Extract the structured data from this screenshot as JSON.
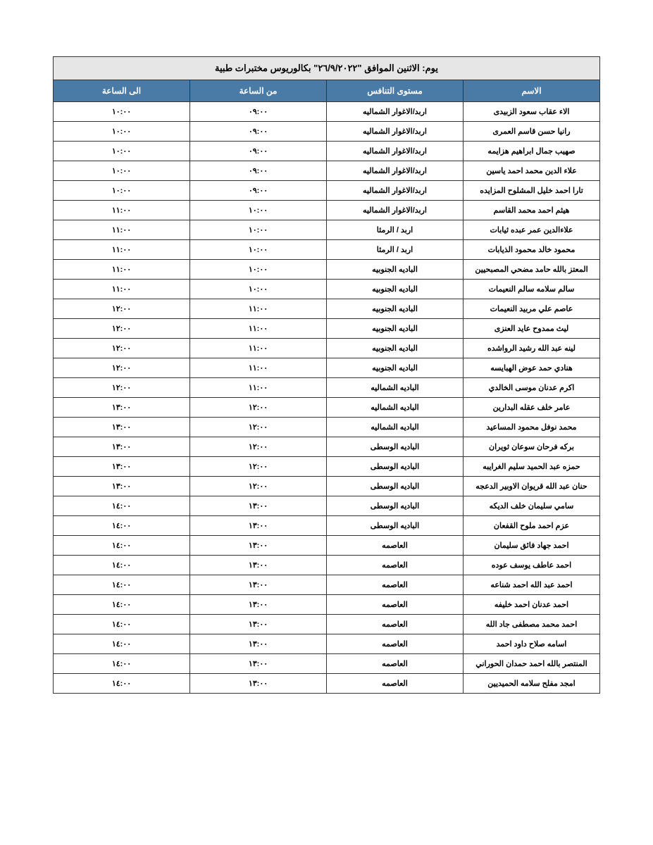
{
  "title": "يوم: الاثنين الموافق \"٢٦/٩/٢٠٢٢\" بكالوريوس مختبرات طبية",
  "headers": {
    "name": "الاسم",
    "level": "مستوى التنافس",
    "from": "من الساعة",
    "to": "الى الساعة"
  },
  "rows": [
    {
      "name": "الاء عقاب سعود الزبيدى",
      "level": "اربد/الاغوار الشماليه",
      "from": "٠٩:٠٠",
      "to": "١٠:٠٠"
    },
    {
      "name": "رانيا حسن قاسم العمرى",
      "level": "اربد/الاغوار الشماليه",
      "from": "٠٩:٠٠",
      "to": "١٠:٠٠"
    },
    {
      "name": "صهيب جمال ابراهيم هزايمه",
      "level": "اربد/الاغوار الشماليه",
      "from": "٠٩:٠٠",
      "to": "١٠:٠٠"
    },
    {
      "name": "علاء الدين محمد احمد ياسين",
      "level": "اربد/الاغوار الشماليه",
      "from": "٠٩:٠٠",
      "to": "١٠:٠٠"
    },
    {
      "name": "تارا احمد خليل المشلوح المزايده",
      "level": "اربد/الاغوار الشماليه",
      "from": "٠٩:٠٠",
      "to": "١٠:٠٠"
    },
    {
      "name": "هيثم احمد محمد القاسم",
      "level": "اربد/الاغوار الشماليه",
      "from": "١٠:٠٠",
      "to": "١١:٠٠"
    },
    {
      "name": "علاءالدين عمر عبده ثيابات",
      "level": "اربد / الرمثا",
      "from": "١٠:٠٠",
      "to": "١١:٠٠"
    },
    {
      "name": "محمود خالد محمود الذيابات",
      "level": "اربد / الرمثا",
      "from": "١٠:٠٠",
      "to": "١١:٠٠"
    },
    {
      "name": "المعتز بالله حامد مضحي المصبحيين",
      "level": "الباديه الجنوبيه",
      "from": "١٠:٠٠",
      "to": "١١:٠٠"
    },
    {
      "name": "سالم سلامه سالم النعيمات",
      "level": "الباديه الجنوبيه",
      "from": "١٠:٠٠",
      "to": "١١:٠٠"
    },
    {
      "name": "عاصم علي مربيد النعيمات",
      "level": "الباديه الجنوبيه",
      "from": "١١:٠٠",
      "to": "١٢:٠٠"
    },
    {
      "name": "ليث ممدوح عايد العنزى",
      "level": "الباديه الجنوبيه",
      "from": "١١:٠٠",
      "to": "١٢:٠٠"
    },
    {
      "name": "لينه عبد الله رشيد الرواشده",
      "level": "الباديه الجنوبيه",
      "from": "١١:٠٠",
      "to": "١٢:٠٠"
    },
    {
      "name": "هنادي حمد عوض الهبايسه",
      "level": "الباديه الجنوبيه",
      "from": "١١:٠٠",
      "to": "١٢:٠٠"
    },
    {
      "name": "اكرم عدنان موسى الخالدي",
      "level": "الباديه الشماليه",
      "from": "١١:٠٠",
      "to": "١٢:٠٠"
    },
    {
      "name": "عامر خلف عقله البدارين",
      "level": "الباديه الشماليه",
      "from": "١٢:٠٠",
      "to": "١٣:٠٠"
    },
    {
      "name": "محمد نوفل محمود المساعيد",
      "level": "الباديه الشماليه",
      "from": "١٢:٠٠",
      "to": "١٣:٠٠"
    },
    {
      "name": "بركه فرحان سوعان ثويران",
      "level": "الباديه الوسطى",
      "from": "١٢:٠٠",
      "to": "١٣:٠٠"
    },
    {
      "name": "حمزه عبد الحميد سليم الغرايبه",
      "level": "الباديه الوسطى",
      "from": "١٢:٠٠",
      "to": "١٣:٠٠"
    },
    {
      "name": "حنان عبد الله قريوان الاوبير الدعجه",
      "level": "الباديه الوسطى",
      "from": "١٢:٠٠",
      "to": "١٣:٠٠"
    },
    {
      "name": "سامي سليمان خلف الديكه",
      "level": "الباديه الوسطى",
      "from": "١٣:٠٠",
      "to": "١٤:٠٠"
    },
    {
      "name": "عزم احمد ملوح القفعان",
      "level": "الباديه الوسطى",
      "from": "١٣:٠٠",
      "to": "١٤:٠٠"
    },
    {
      "name": "احمد جهاد فائق سليمان",
      "level": "العاصمه",
      "from": "١٣:٠٠",
      "to": "١٤:٠٠"
    },
    {
      "name": "احمد عاطف يوسف عوده",
      "level": "العاصمه",
      "from": "١٣:٠٠",
      "to": "١٤:٠٠"
    },
    {
      "name": "احمد عبد الله احمد شناعه",
      "level": "العاصمه",
      "from": "١٣:٠٠",
      "to": "١٤:٠٠"
    },
    {
      "name": "احمد عدنان احمد خليفه",
      "level": "العاصمه",
      "from": "١٣:٠٠",
      "to": "١٤:٠٠"
    },
    {
      "name": "احمد محمد مصطفى جاد الله",
      "level": "العاصمه",
      "from": "١٣:٠٠",
      "to": "١٤:٠٠"
    },
    {
      "name": "اسامه صلاح داود احمد",
      "level": "العاصمه",
      "from": "١٣:٠٠",
      "to": "١٤:٠٠"
    },
    {
      "name": "المنتصر بالله احمد حمدان الحوراني",
      "level": "العاصمه",
      "from": "١٣:٠٠",
      "to": "١٤:٠٠"
    },
    {
      "name": "امجد مفلح سلامه الحميديين",
      "level": "العاصمه",
      "from": "١٣:٠٠",
      "to": "١٤:٠٠"
    }
  ],
  "colors": {
    "title_bg": "#e6e6e6",
    "header_bg": "#4a7aa6",
    "header_text": "#ffffff",
    "border": "#333333",
    "row_bg": "#ffffff"
  }
}
